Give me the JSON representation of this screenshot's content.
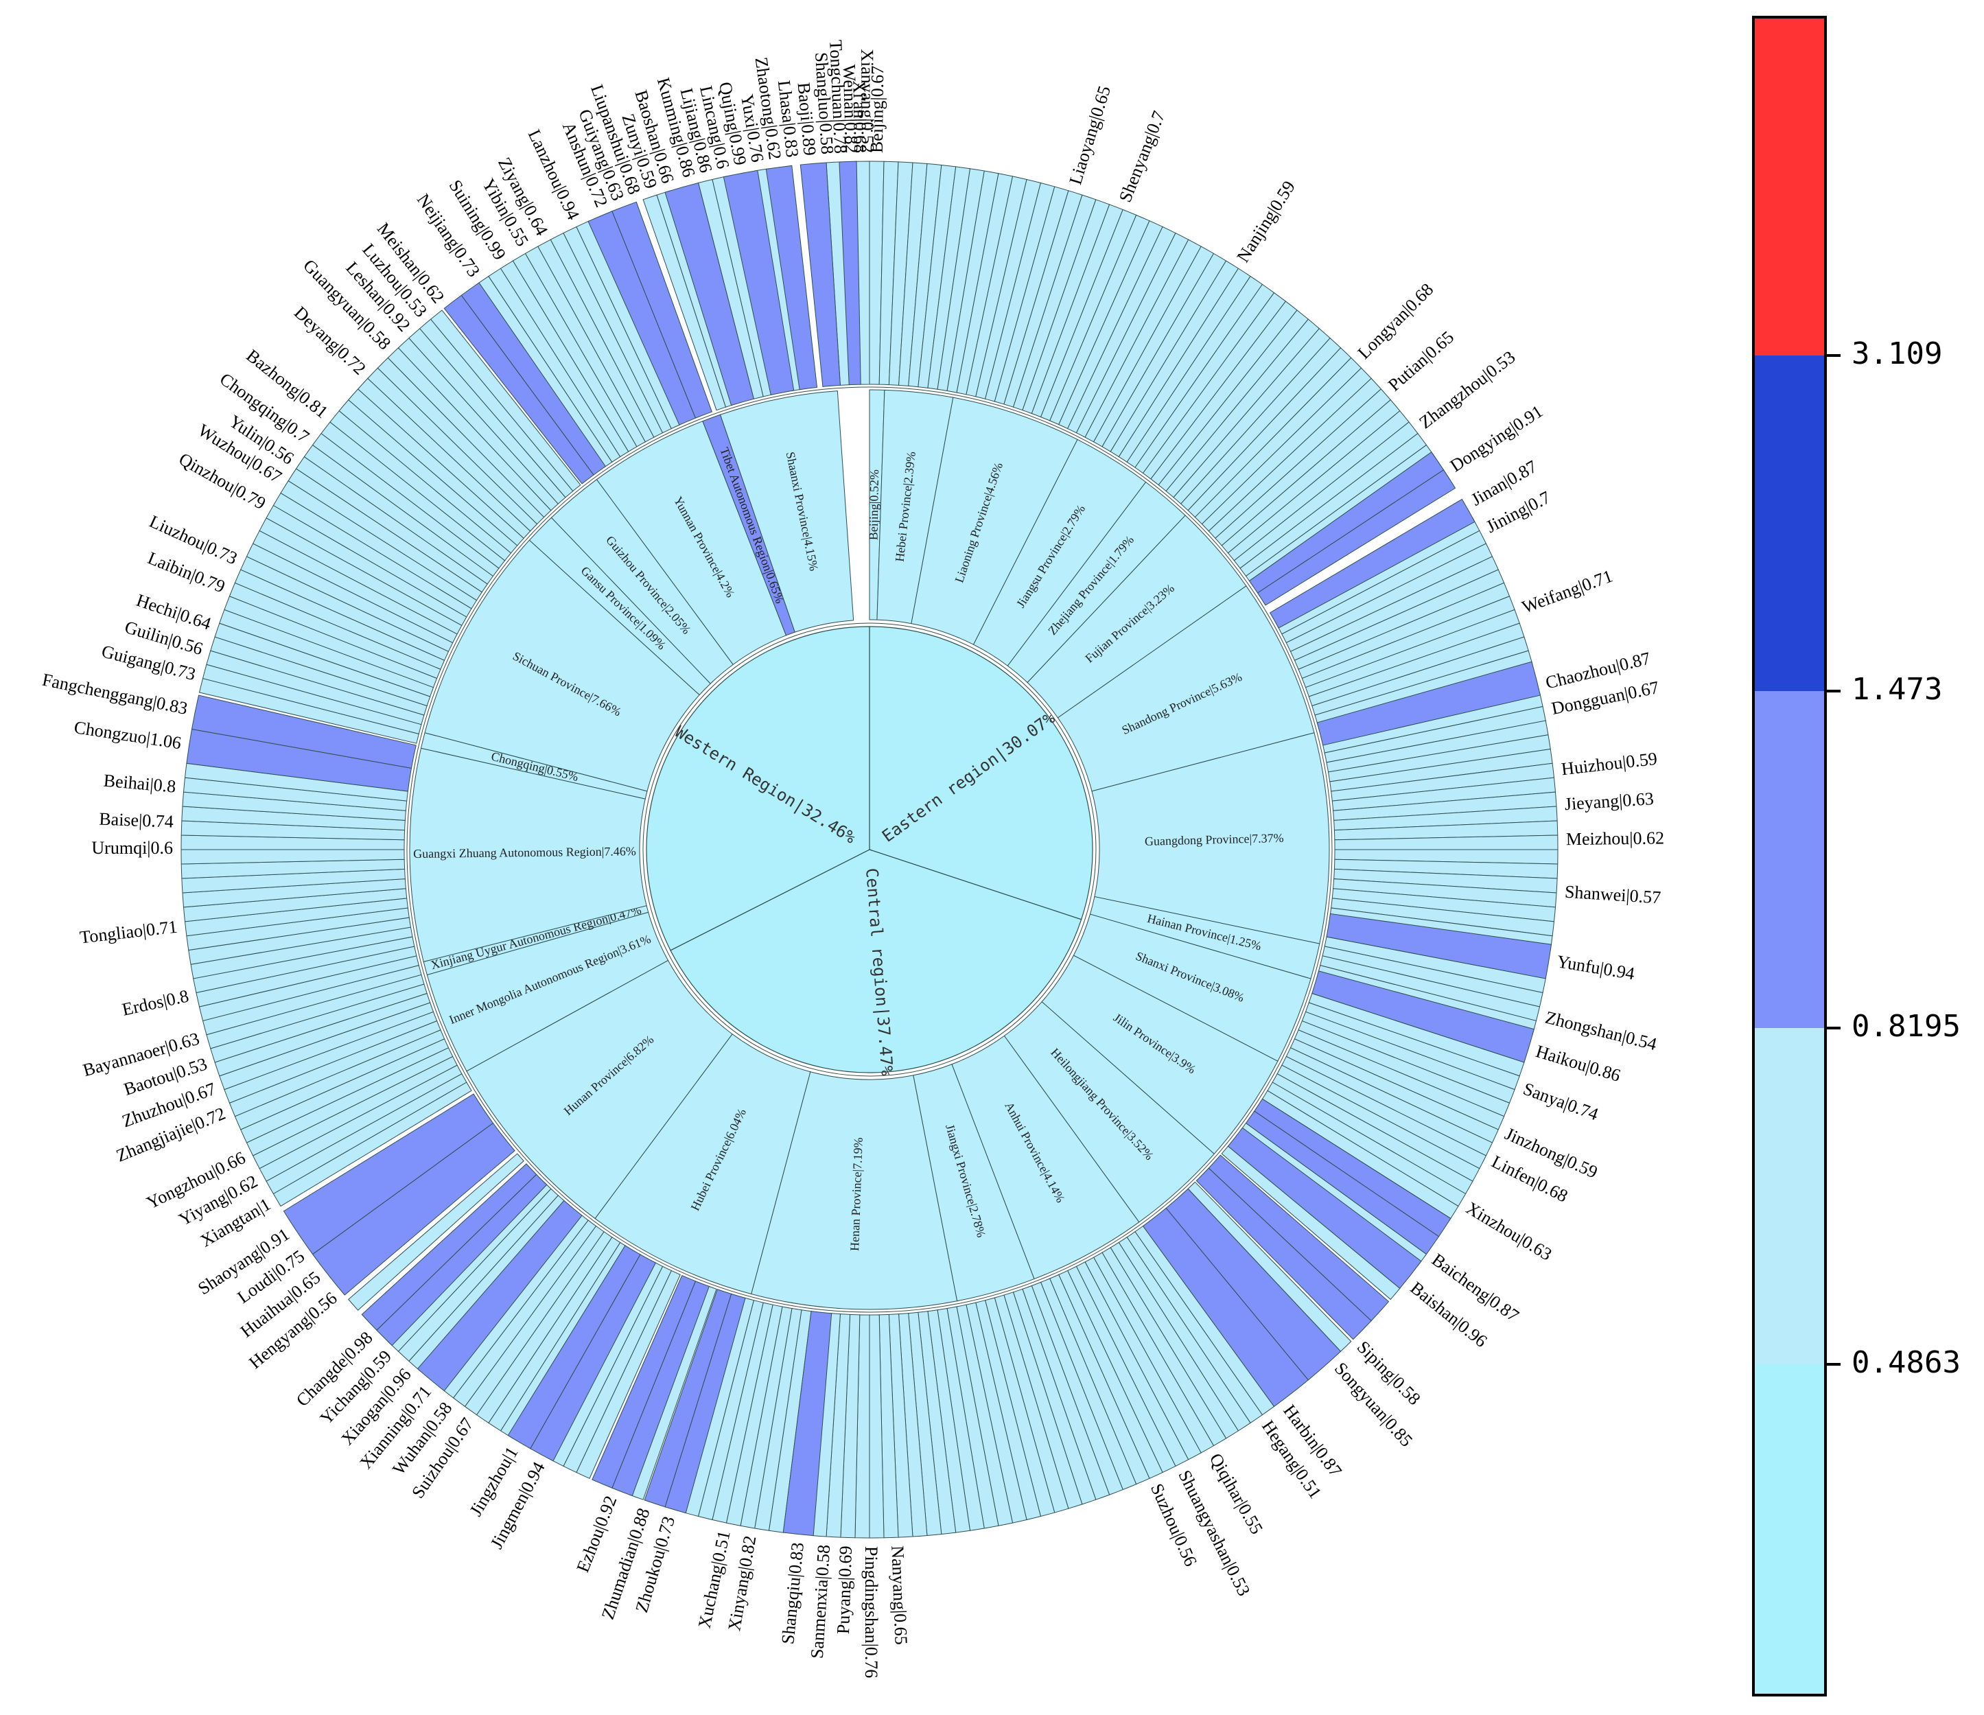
{
  "chart_data": {
    "type": "sunburst",
    "title": "",
    "regions": [
      {
        "label": "Eastern region|30.07%",
        "share": 30.07
      },
      {
        "label": "Central region|37.47%",
        "share": 37.47
      },
      {
        "label": "Western Region|32.46%",
        "share": 32.46
      }
    ],
    "provinces": [
      {
        "region": 0,
        "label": "Beijing|0.52%",
        "share": 0.52
      },
      {
        "region": 0,
        "label": "Hebei Province|2.39%",
        "share": 2.39
      },
      {
        "region": 0,
        "label": "Liaoning Province|4.56%",
        "share": 4.56
      },
      {
        "region": 0,
        "label": "Jiangsu Province|2.79%",
        "share": 2.79
      },
      {
        "region": 0,
        "label": "Zhejiang Province|1.79%",
        "share": 1.79
      },
      {
        "region": 0,
        "label": "Fujian Province|3.23%",
        "share": 3.23
      },
      {
        "region": 0,
        "label": "Shandong Province|5.63%",
        "share": 5.63
      },
      {
        "region": 0,
        "label": "Guangdong Province|7.37%",
        "share": 7.37
      },
      {
        "region": 0,
        "label": "Hainan Province|1.25%",
        "share": 1.25
      },
      {
        "region": 1,
        "label": "Shanxi Province|3.08%",
        "share": 3.08
      },
      {
        "region": 1,
        "label": "Jilin Province|3.9%",
        "share": 3.9
      },
      {
        "region": 1,
        "label": "Heilongjiang Province|3.52%",
        "share": 3.52
      },
      {
        "region": 1,
        "label": "Anhui Province|4.14%",
        "share": 4.14
      },
      {
        "region": 1,
        "label": "Jiangxi Province|2.78%",
        "share": 2.78
      },
      {
        "region": 1,
        "label": "Henan Province|7.19%",
        "share": 7.19
      },
      {
        "region": 1,
        "label": "Hubei Province|6.04%",
        "share": 6.04
      },
      {
        "region": 1,
        "label": "Hunan Province|6.82%",
        "share": 6.82
      },
      {
        "region": 2,
        "label": "Inner Mongolia Autonomous Region|3.61%",
        "share": 3.61
      },
      {
        "region": 2,
        "label": "Xinjiang Uygur Autonomous Region|0.47%",
        "share": 0.47
      },
      {
        "region": 2,
        "label": "Guangxi Zhuang Autonomous Region|7.46%",
        "share": 7.46
      },
      {
        "region": 2,
        "label": "Chongqing|0.55%",
        "share": 0.55
      },
      {
        "region": 2,
        "label": "Sichuan Province|7.66%",
        "share": 7.66
      },
      {
        "region": 2,
        "label": "Gansu Province|1.09%",
        "share": 1.09
      },
      {
        "region": 2,
        "label": "Guizhou Province|2.05%",
        "share": 2.05
      },
      {
        "region": 2,
        "label": "Yunnan Province|4.2%",
        "share": 4.2
      },
      {
        "region": 2,
        "label": "Tibet Autonomous Region|0.65%",
        "share": 0.65
      },
      {
        "region": 2,
        "label": "Shaanxi Province|4.15%",
        "share": 4.15
      }
    ],
    "labeled_cities": [
      {
        "label": "Beijing|0.67",
        "value": 0.67,
        "pos": 0.2
      },
      {
        "label": "Liaoyang|0.65",
        "value": 0.65,
        "pos": 4.8
      },
      {
        "label": "Shenyang|0.7",
        "value": 0.7,
        "pos": 6.0
      },
      {
        "label": "Nanjing|0.59",
        "value": 0.59,
        "pos": 9.0
      },
      {
        "label": "Longyan|0.68",
        "value": 0.68,
        "pos": 12.5
      },
      {
        "label": "Putian|0.65",
        "value": 0.65,
        "pos": 13.5
      },
      {
        "label": "Zhangzhou|0.53",
        "value": 0.53,
        "pos": 14.6
      },
      {
        "label": "Dongying|0.91",
        "value": 0.91,
        "pos": 15.8
      },
      {
        "label": "Jinan|0.87",
        "value": 0.87,
        "pos": 16.7
      },
      {
        "label": "Jining|0.7",
        "value": 0.7,
        "pos": 17.4
      },
      {
        "label": "Weifang|0.71",
        "value": 0.71,
        "pos": 19.4
      },
      {
        "label": "Chaozhou|0.87",
        "value": 0.87,
        "pos": 21.2
      },
      {
        "label": "Dongguan|0.67",
        "value": 0.67,
        "pos": 21.8
      },
      {
        "label": "Huizhou|0.59",
        "value": 0.59,
        "pos": 23.2
      },
      {
        "label": "Jieyang|0.63",
        "value": 0.63,
        "pos": 24.0
      },
      {
        "label": "Meizhou|0.62",
        "value": 0.62,
        "pos": 24.8
      },
      {
        "label": "Shanwei|0.57",
        "value": 0.57,
        "pos": 26.0
      },
      {
        "label": "Yunfu|0.94",
        "value": 0.94,
        "pos": 27.6
      },
      {
        "label": "Zhongshan|0.54",
        "value": 0.54,
        "pos": 28.9
      },
      {
        "label": "Haikou|0.86",
        "value": 0.86,
        "pos": 29.7
      },
      {
        "label": "Sanya|0.74",
        "value": 0.74,
        "pos": 30.6
      },
      {
        "label": "Jinzhong|0.59",
        "value": 0.59,
        "pos": 31.7
      },
      {
        "label": "Linfen|0.68",
        "value": 0.68,
        "pos": 32.4
      },
      {
        "label": "Xinzhou|0.63",
        "value": 0.63,
        "pos": 33.6
      },
      {
        "label": "Baicheng|0.87",
        "value": 0.87,
        "pos": 35.0
      },
      {
        "label": "Baishan|0.96",
        "value": 0.96,
        "pos": 35.8
      },
      {
        "label": "Siping|0.58",
        "value": 0.58,
        "pos": 37.6
      },
      {
        "label": "Songyuan|0.85",
        "value": 0.85,
        "pos": 38.3
      },
      {
        "label": "Harbin|0.87",
        "value": 0.87,
        "pos": 39.8
      },
      {
        "label": "Hegang|0.51",
        "value": 0.51,
        "pos": 40.4
      },
      {
        "label": "Qiqihar|0.55",
        "value": 0.55,
        "pos": 41.8
      },
      {
        "label": "Shuangyashan|0.53",
        "value": 0.53,
        "pos": 42.6
      },
      {
        "label": "Suzhou|0.56",
        "value": 0.56,
        "pos": 43.3
      },
      {
        "label": "Nanyang|0.65",
        "value": 0.65,
        "pos": 49.4
      },
      {
        "label": "Pingdingshan|0.76",
        "value": 0.76,
        "pos": 50.0
      },
      {
        "label": "Puyang|0.69",
        "value": 0.69,
        "pos": 50.5
      },
      {
        "label": "Sanmenxia|0.58",
        "value": 0.58,
        "pos": 51.0
      },
      {
        "label": "Shangqiu|0.83",
        "value": 0.83,
        "pos": 51.6
      },
      {
        "label": "Xinyang|0.82",
        "value": 0.82,
        "pos": 52.7
      },
      {
        "label": "Xuchang|0.51",
        "value": 0.51,
        "pos": 53.3
      },
      {
        "label": "Zhoukou|0.73",
        "value": 0.73,
        "pos": 54.6
      },
      {
        "label": "Zhumadian|0.88",
        "value": 0.88,
        "pos": 55.2
      },
      {
        "label": "Ezhou|0.92",
        "value": 0.92,
        "pos": 56.0
      },
      {
        "label": "Jingmen|0.94",
        "value": 0.94,
        "pos": 57.8
      },
      {
        "label": "Jingzhou|1",
        "value": 1,
        "pos": 58.5
      },
      {
        "label": "Suizhou|0.67",
        "value": 0.67,
        "pos": 59.7
      },
      {
        "label": "Wuhan|0.58",
        "value": 0.58,
        "pos": 60.3
      },
      {
        "label": "Xianning|0.71",
        "value": 0.71,
        "pos": 60.9
      },
      {
        "label": "Xiaogan|0.96",
        "value": 0.96,
        "pos": 61.5
      },
      {
        "label": "Yichang|0.59",
        "value": 0.59,
        "pos": 62.1
      },
      {
        "label": "Changde|0.98",
        "value": 0.98,
        "pos": 62.7
      },
      {
        "label": "Hengyang|0.56",
        "value": 0.56,
        "pos": 63.9
      },
      {
        "label": "Huaihua|0.65",
        "value": 0.65,
        "pos": 64.5
      },
      {
        "label": "Loudi|0.75",
        "value": 0.75,
        "pos": 65.1
      },
      {
        "label": "Shaoyang|0.91",
        "value": 0.91,
        "pos": 65.7
      },
      {
        "label": "Xiangtan|1",
        "value": 1,
        "pos": 66.5
      },
      {
        "label": "Yiyang|0.62",
        "value": 0.62,
        "pos": 67.1
      },
      {
        "label": "Yongzhou|0.66",
        "value": 0.66,
        "pos": 67.7
      },
      {
        "label": "Zhangjiajie|0.72",
        "value": 0.72,
        "pos": 68.8
      },
      {
        "label": "Zhuzhou|0.67",
        "value": 0.67,
        "pos": 69.4
      },
      {
        "label": "Baotou|0.53",
        "value": 0.53,
        "pos": 70.0
      },
      {
        "label": "Bayannaoer|0.63",
        "value": 0.63,
        "pos": 70.6
      },
      {
        "label": "Erdos|0.8",
        "value": 0.8,
        "pos": 71.6
      },
      {
        "label": "Tongliao|0.71",
        "value": 0.71,
        "pos": 73.2
      },
      {
        "label": "Urumqi|0.6",
        "value": 0.6,
        "pos": 75.0
      },
      {
        "label": "Baise|0.74",
        "value": 0.74,
        "pos": 75.6
      },
      {
        "label": "Beihai|0.8",
        "value": 0.8,
        "pos": 76.4
      },
      {
        "label": "Chongzuo|1.06",
        "value": 1.06,
        "pos": 77.4
      },
      {
        "label": "Fangchenggang|0.83",
        "value": 0.83,
        "pos": 78.2
      },
      {
        "label": "Guigang|0.73",
        "value": 0.73,
        "pos": 79.0
      },
      {
        "label": "Guilin|0.56",
        "value": 0.56,
        "pos": 79.6
      },
      {
        "label": "Hechi|0.64",
        "value": 0.64,
        "pos": 80.2
      },
      {
        "label": "Laibin|0.79",
        "value": 0.79,
        "pos": 81.1
      },
      {
        "label": "Liuzhou|0.73",
        "value": 0.73,
        "pos": 81.8
      },
      {
        "label": "Qinzhou|0.79",
        "value": 0.79,
        "pos": 83.2
      },
      {
        "label": "Wuzhou|0.67",
        "value": 0.67,
        "pos": 83.9
      },
      {
        "label": "Yulin|0.56",
        "value": 0.56,
        "pos": 84.4
      },
      {
        "label": "Chongqing|0.7",
        "value": 0.7,
        "pos": 85.0
      },
      {
        "label": "Bazhong|0.81",
        "value": 0.81,
        "pos": 85.7
      },
      {
        "label": "Deyang|0.72",
        "value": 0.72,
        "pos": 87.0
      },
      {
        "label": "Guangyuan|0.58",
        "value": 0.58,
        "pos": 87.8
      },
      {
        "label": "Leshan|0.92",
        "value": 0.92,
        "pos": 88.4
      },
      {
        "label": "Luzhou|0.53",
        "value": 0.53,
        "pos": 88.9
      },
      {
        "label": "Meishan|0.62",
        "value": 0.62,
        "pos": 89.4
      },
      {
        "label": "Neijiang|0.73",
        "value": 0.73,
        "pos": 90.4
      },
      {
        "label": "Suining|0.99",
        "value": 0.99,
        "pos": 91.1
      },
      {
        "label": "Yibin|0.55",
        "value": 0.55,
        "pos": 91.7
      },
      {
        "label": "Ziyang|0.64",
        "value": 0.64,
        "pos": 92.2
      },
      {
        "label": "Lanzhou|0.94",
        "value": 0.94,
        "pos": 93.0
      },
      {
        "label": "Anshun|0.72",
        "value": 0.72,
        "pos": 93.7
      },
      {
        "label": "Guiyang|0.63",
        "value": 0.63,
        "pos": 94.1
      },
      {
        "label": "Liupanshui|0.68",
        "value": 0.68,
        "pos": 94.5
      },
      {
        "label": "Zunyi|0.59",
        "value": 0.59,
        "pos": 94.9
      },
      {
        "label": "Baoshan|0.66",
        "value": 0.66,
        "pos": 95.3
      },
      {
        "label": "Kunming|0.86",
        "value": 0.86,
        "pos": 95.8
      },
      {
        "label": "Lijiang|0.86",
        "value": 0.86,
        "pos": 96.2
      },
      {
        "label": "Lincang|0.6",
        "value": 0.6,
        "pos": 96.6
      },
      {
        "label": "Qujing|0.99",
        "value": 0.99,
        "pos": 97.0
      },
      {
        "label": "Yuxi|0.76",
        "value": 0.76,
        "pos": 97.4
      },
      {
        "label": "Zhaotong|0.62",
        "value": 0.62,
        "pos": 97.8
      },
      {
        "label": "Lhasa|0.83",
        "value": 0.83,
        "pos": 98.2
      },
      {
        "label": "Baoji|0.89",
        "value": 0.89,
        "pos": 98.6
      },
      {
        "label": "Shangluo|0.58",
        "value": 0.58,
        "pos": 99.0
      },
      {
        "label": "Tongchuan|0.78",
        "value": 0.78,
        "pos": 99.3
      },
      {
        "label": "Weinan|0.82",
        "value": 0.82,
        "pos": 99.55
      },
      {
        "label": "Xi'an|0.68",
        "value": 0.68,
        "pos": 99.75
      },
      {
        "label": "Xianyang|0.52",
        "value": 0.52,
        "pos": 99.92
      }
    ],
    "highlight_bands": [
      [
        15.2,
        16.2
      ],
      [
        16.5,
        17.1
      ],
      [
        20.6,
        21.4
      ],
      [
        27.2,
        28.0
      ],
      [
        29.2,
        30.0
      ],
      [
        34.0,
        35.0
      ],
      [
        35.2,
        36.0
      ],
      [
        36.4,
        37.6
      ],
      [
        38.0,
        40.0
      ],
      [
        51.3,
        52.0
      ],
      [
        54.3,
        55.3
      ],
      [
        55.6,
        56.6
      ],
      [
        57.6,
        58.8
      ],
      [
        60.6,
        61.4
      ],
      [
        62.2,
        63.2
      ],
      [
        63.8,
        66.2
      ],
      [
        77.0,
        78.6
      ],
      [
        89.4,
        90.4
      ],
      [
        93.3,
        94.5
      ],
      [
        95.2,
        96.0
      ],
      [
        96.6,
        97.4
      ],
      [
        97.6,
        98.2
      ],
      [
        98.4,
        99.0
      ],
      [
        99.3,
        99.7
      ]
    ],
    "tibet_province_highlight": true,
    "colorbar": {
      "ticks": [
        "0.4863",
        "0.8195",
        "1.473",
        "3.109"
      ],
      "bins": [
        {
          "from": "min",
          "to": "0.4863",
          "color": "#aaf1fe"
        },
        {
          "from": "0.4863",
          "to": "0.8195",
          "color": "#b9ebfb"
        },
        {
          "from": "0.8195",
          "to": "1.473",
          "color": "#7f91fb"
        },
        {
          "from": "1.473",
          "to": "3.109",
          "color": "#2545d4"
        },
        {
          "from": "3.109",
          "to": "max",
          "color": "#ff3333"
        }
      ]
    },
    "colors": {
      "center": "#b0f0fc",
      "province": "#b9eefc",
      "city": "#b9ebfb",
      "city_high": "#7f91fb",
      "stroke": "#2f4f4f"
    }
  }
}
